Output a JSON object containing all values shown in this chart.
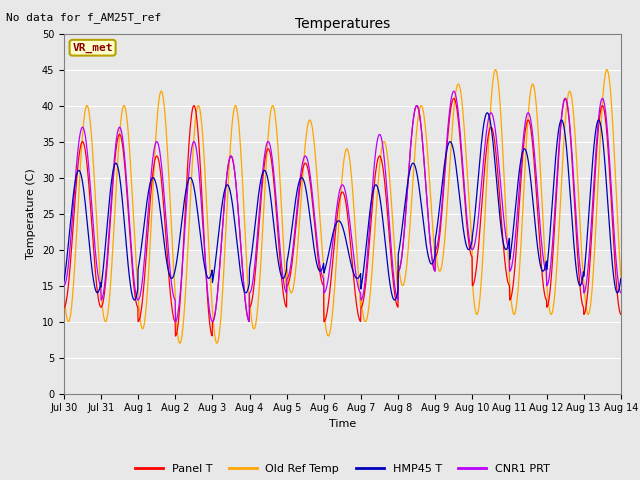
{
  "title": "Temperatures",
  "xlabel": "Time",
  "ylabel": "Temperature (C)",
  "ylim": [
    0,
    50
  ],
  "yticks": [
    0,
    5,
    10,
    15,
    20,
    25,
    30,
    35,
    40,
    45,
    50
  ],
  "x_tick_labels": [
    "Jul 30",
    "Jul 31",
    "Aug 1",
    "Aug 2",
    "Aug 3",
    "Aug 4",
    "Aug 5",
    "Aug 6",
    "Aug 7",
    "Aug 8",
    "Aug 9",
    "Aug 10",
    "Aug 11",
    "Aug 12",
    "Aug 13",
    "Aug 14"
  ],
  "no_data_text": "No data for f_AM25T_ref",
  "vr_met_label": "VR_met",
  "line_colors": {
    "Panel T": "#FF0000",
    "Old Ref Temp": "#FFA500",
    "HMP45 T": "#0000BB",
    "CNR1 PRT": "#BB00FF"
  },
  "background_color": "#E8E8E8",
  "fig_background": "#E8E8E8",
  "num_cycles": 15,
  "panel_t_peaks": [
    35,
    36,
    33,
    40,
    33,
    34,
    32,
    28,
    33,
    40,
    41,
    37,
    38,
    41,
    40
  ],
  "panel_t_troughs": [
    12,
    12,
    10,
    8,
    10,
    12,
    15,
    10,
    12,
    17,
    19,
    15,
    13,
    12,
    11
  ],
  "old_ref_peaks": [
    40,
    40,
    42,
    40,
    40,
    40,
    38,
    34,
    35,
    40,
    43,
    45,
    43,
    42,
    45
  ],
  "old_ref_troughs": [
    10,
    10,
    9,
    7,
    7,
    9,
    14,
    8,
    10,
    15,
    17,
    11,
    11,
    11,
    11
  ],
  "hmp45_peaks": [
    31,
    32,
    30,
    30,
    29,
    31,
    30,
    24,
    29,
    32,
    35,
    39,
    34,
    38,
    38
  ],
  "hmp45_troughs": [
    14,
    13,
    16,
    16,
    14,
    16,
    17,
    16,
    13,
    18,
    20,
    20,
    17,
    15,
    14
  ],
  "cnr1_peaks": [
    37,
    37,
    35,
    35,
    33,
    35,
    33,
    29,
    36,
    40,
    42,
    39,
    39,
    41,
    41
  ],
  "cnr1_troughs": [
    15,
    13,
    13,
    10,
    10,
    14,
    16,
    14,
    13,
    17,
    20,
    20,
    17,
    15,
    14
  ],
  "phase_shift_old_ref": -0.12,
  "phase_shift_hmp45": 0.1,
  "phase_shift_cnr1": 0.0
}
